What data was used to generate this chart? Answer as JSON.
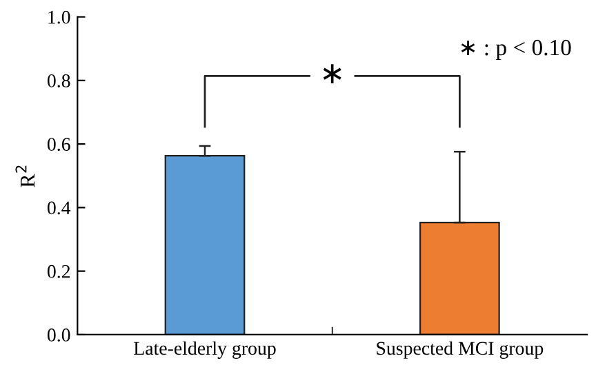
{
  "chart_data": {
    "type": "bar",
    "ylabel": "R$^{2}$",
    "categories": [
      "Late-elderly group",
      "Suspected MCI group"
    ],
    "values": [
      0.563,
      0.353
    ],
    "colors": [
      "#5b9bd5",
      "#ed7d31"
    ],
    "errors": [
      [
        0.563,
        0.594
      ],
      [
        0.353,
        0.576
      ]
    ],
    "ylim": [
      0,
      1.0
    ],
    "yticks": [
      {
        "value": 0,
        "label": "0.0"
      },
      0.2,
      0.4,
      0.6,
      0.8,
      {
        "value": 1.0,
        "label": "1.0"
      }
    ],
    "grid": false,
    "legend": false,
    "annotations": [
      "∗ : p < 0.10",
      "∗"
    ]
  }
}
